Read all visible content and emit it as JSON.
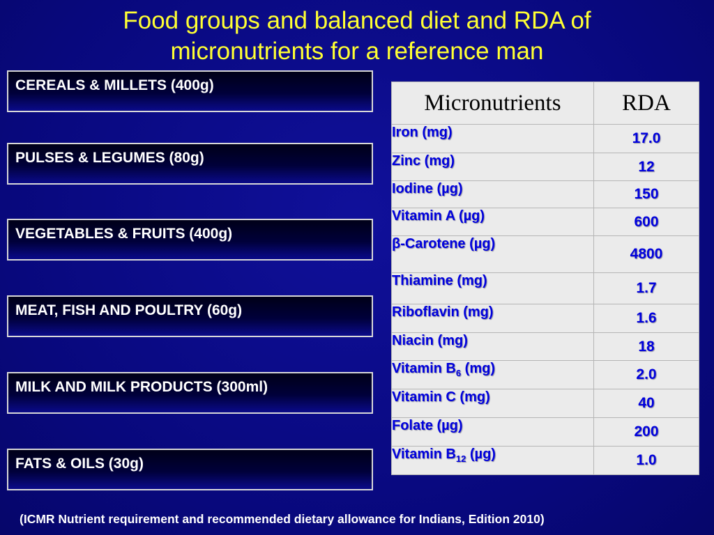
{
  "title_line1": "Food groups and balanced diet and RDA of",
  "title_line2": "micronutrients for a reference man",
  "food_groups": [
    "CEREALS & MILLETS (400g)",
    "PULSES & LEGUMES (80g)",
    "VEGETABLES & FRUITS (400g)",
    "MEAT, FISH AND POULTRY (60g)",
    "MILK AND MILK PRODUCTS (300ml)",
    "FATS & OILS (30g)"
  ],
  "table": {
    "header_name": "Micronutrients",
    "header_rda": "RDA",
    "rows": [
      {
        "name": "Iron (mg)",
        "rda": "17.0"
      },
      {
        "name": "Zinc (mg)",
        "rda": "12"
      },
      {
        "name": "Iodine (µg)",
        "rda": "150"
      },
      {
        "name": "Vitamin A (µg)",
        "rda": "600"
      },
      {
        "name": "β-Carotene (µg)",
        "rda": "4800"
      },
      {
        "name": "Thiamine (mg)",
        "rda": "1.7"
      },
      {
        "name": "Riboflavin (mg)",
        "rda": "1.6"
      },
      {
        "name": "Niacin (mg)",
        "rda": "18"
      },
      {
        "name_pre": "Vitamin B",
        "name_sub": "6",
        "name_post": " (mg)",
        "rda": "2.0"
      },
      {
        "name": "Vitamin C (mg)",
        "rda": "40"
      },
      {
        "name": "Folate (µg)",
        "rda": "200"
      },
      {
        "name_pre": "Vitamin B",
        "name_sub": "12",
        "name_post": " (µg)",
        "rda": "1.0"
      }
    ]
  },
  "footer": "(ICMR Nutrient requirement and recommended dietary allowance for Indians, Edition 2010)",
  "colors": {
    "background": "#0a0a8a",
    "title": "#ffff33",
    "table_text": "#0000dd",
    "table_bg": "#ebebeb"
  }
}
